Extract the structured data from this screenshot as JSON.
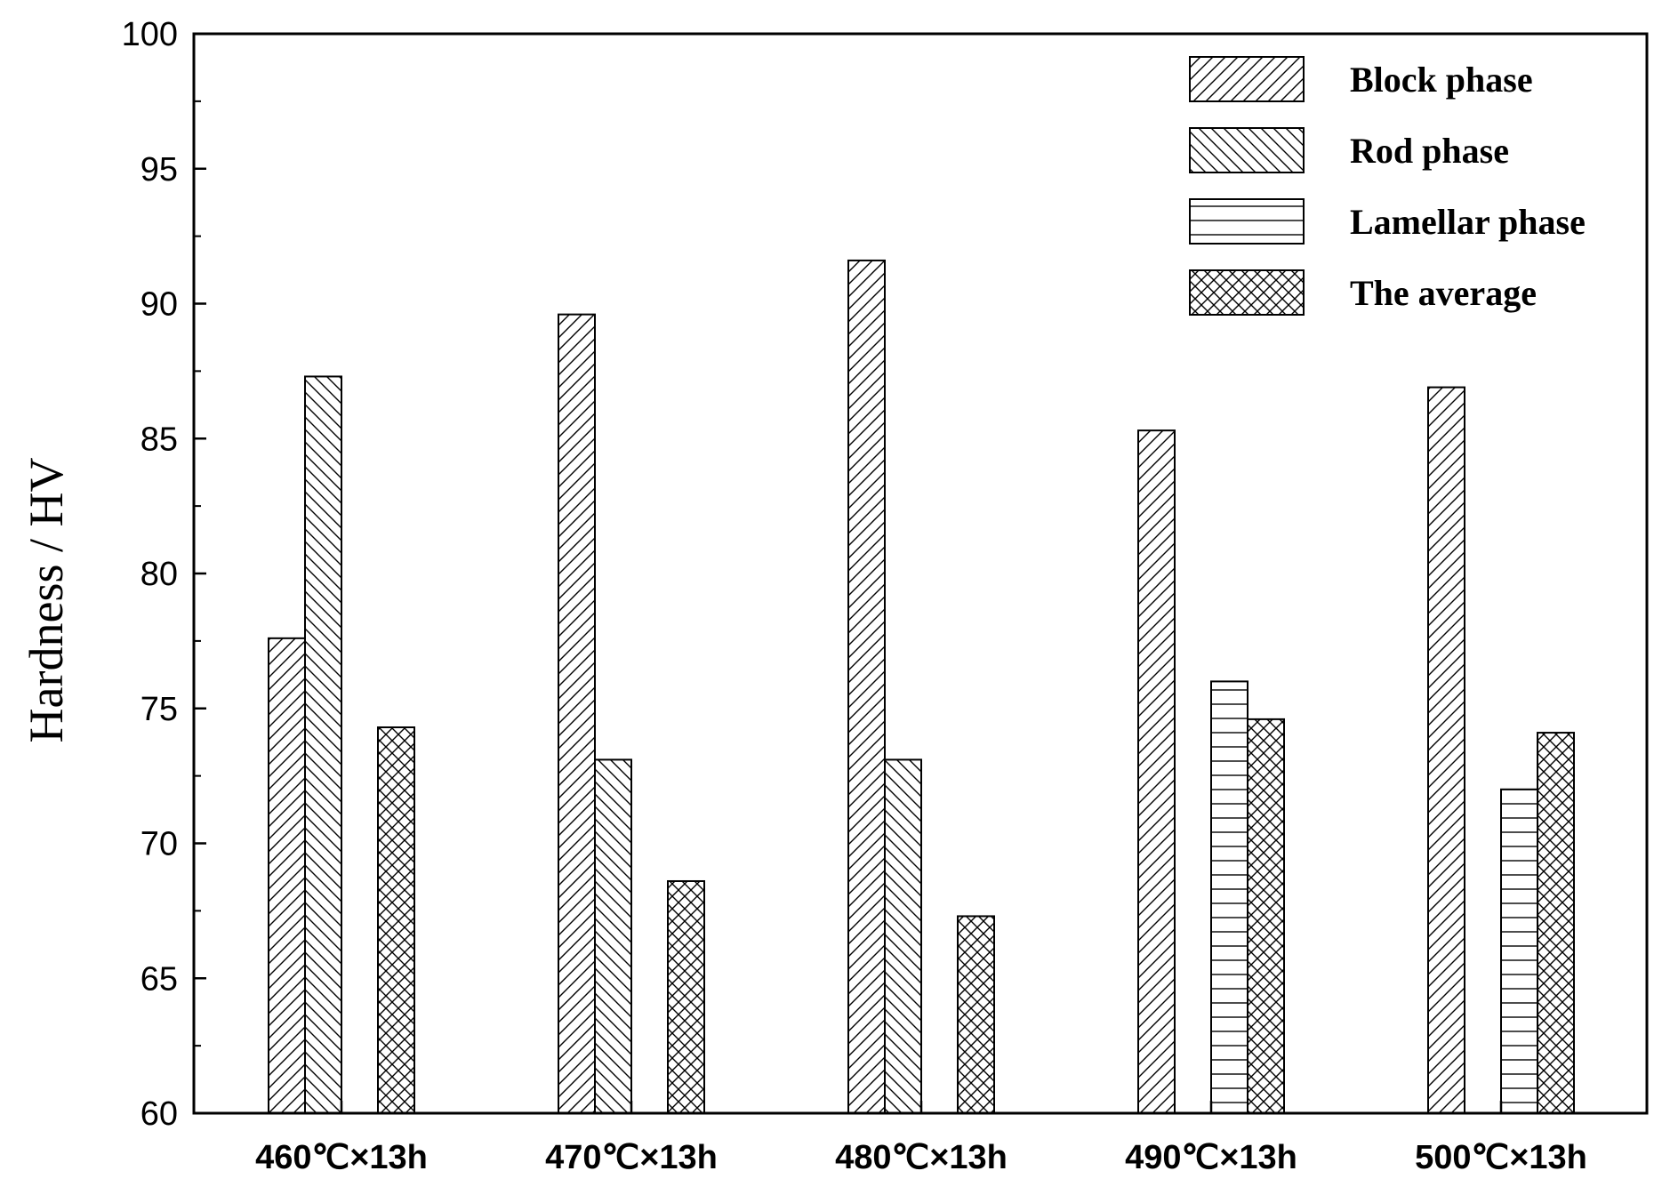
{
  "chart_data": {
    "type": "bar",
    "categories": [
      "460℃×13h",
      "470℃×13h",
      "480℃×13h",
      "490℃×13h",
      "500℃×13h"
    ],
    "series": [
      {
        "name": "Block phase",
        "pattern": "diagonal-forward",
        "values": [
          77.6,
          89.6,
          91.6,
          85.3,
          86.9
        ]
      },
      {
        "name": "Rod phase",
        "pattern": "diagonal-backward",
        "values": [
          87.3,
          73.1,
          73.1,
          null,
          null
        ]
      },
      {
        "name": "Lamellar phase",
        "pattern": "horizontal",
        "values": [
          null,
          null,
          null,
          76.0,
          72.0
        ]
      },
      {
        "name": "The average",
        "pattern": "crosshatch",
        "values": [
          74.3,
          68.6,
          67.3,
          74.6,
          74.1
        ]
      }
    ],
    "ylabel": "Hardness / HV",
    "xlabel": "",
    "ylim": [
      60,
      100
    ],
    "yticks": [
      60,
      65,
      70,
      75,
      80,
      85,
      90,
      95,
      100
    ],
    "legend_position": "top-right",
    "grid": false,
    "colors": {
      "stroke": "#000000",
      "fill": "#ffffff"
    }
  }
}
